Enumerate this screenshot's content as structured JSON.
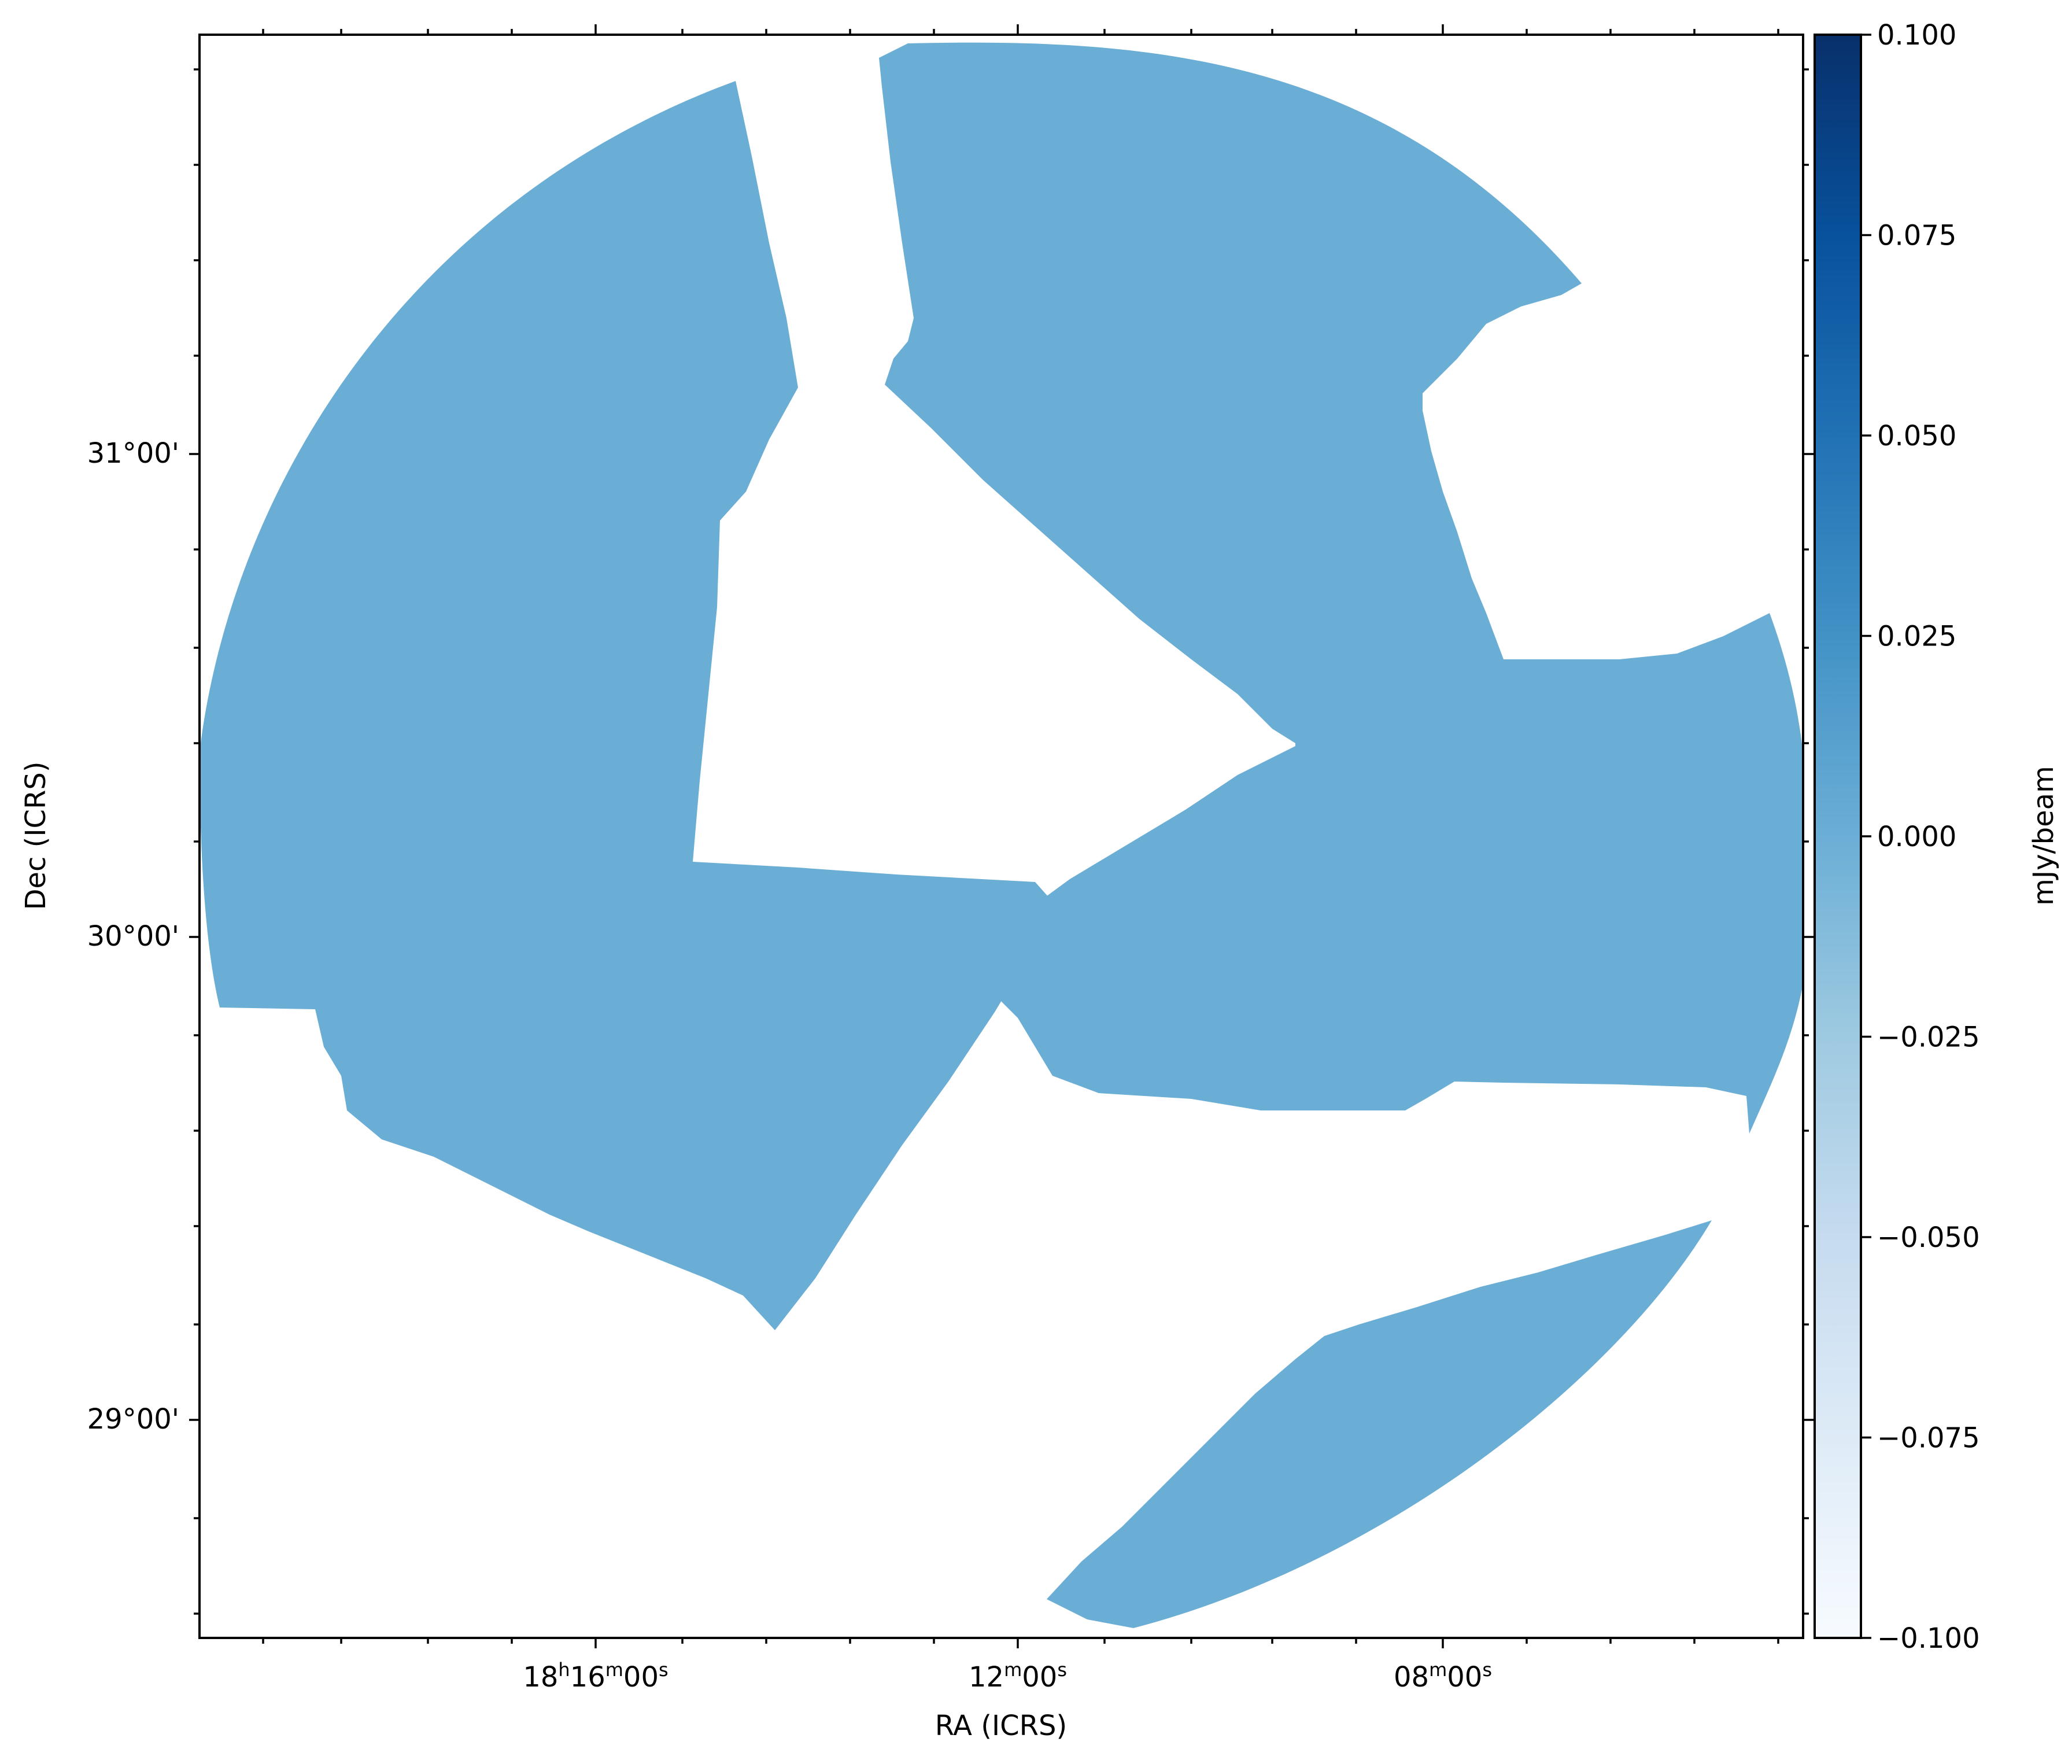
{
  "chart_data": {
    "type": "heatmap",
    "title": "",
    "xlabel": "RA (ICRS)",
    "ylabel": "Dec (ICRS)",
    "x_ticks": [
      {
        "label_main": "18",
        "sup1": "h",
        "mid": "16",
        "sup2": "m",
        "tail": "00",
        "sup3": "s"
      },
      {
        "label_main": "12",
        "sup1": "m",
        "mid": "00",
        "sup2": "s",
        "tail": "",
        "sup3": ""
      },
      {
        "label_main": "08",
        "sup1": "m",
        "mid": "00",
        "sup2": "s",
        "tail": "",
        "sup3": ""
      }
    ],
    "y_ticks": [
      "31°00'",
      "30°00'",
      "29°00'"
    ],
    "colorbar": {
      "label": "mJy/beam",
      "vmin": -0.1,
      "vmax": 0.1,
      "ticks": [
        "0.100",
        "0.075",
        "0.050",
        "0.025",
        "0.000",
        "−0.025",
        "−0.050",
        "−0.075",
        "−0.100"
      ],
      "cmap": "Blues",
      "stops": [
        "#f7fbff",
        "#deebf7",
        "#c6dbef",
        "#9ecae1",
        "#6baed6",
        "#4292c6",
        "#2171b5",
        "#08519c",
        "#08306b"
      ]
    },
    "image_fill_color": "#6aadd5",
    "mosaic_value_mjy_per_beam": 0.0,
    "grid": false
  }
}
